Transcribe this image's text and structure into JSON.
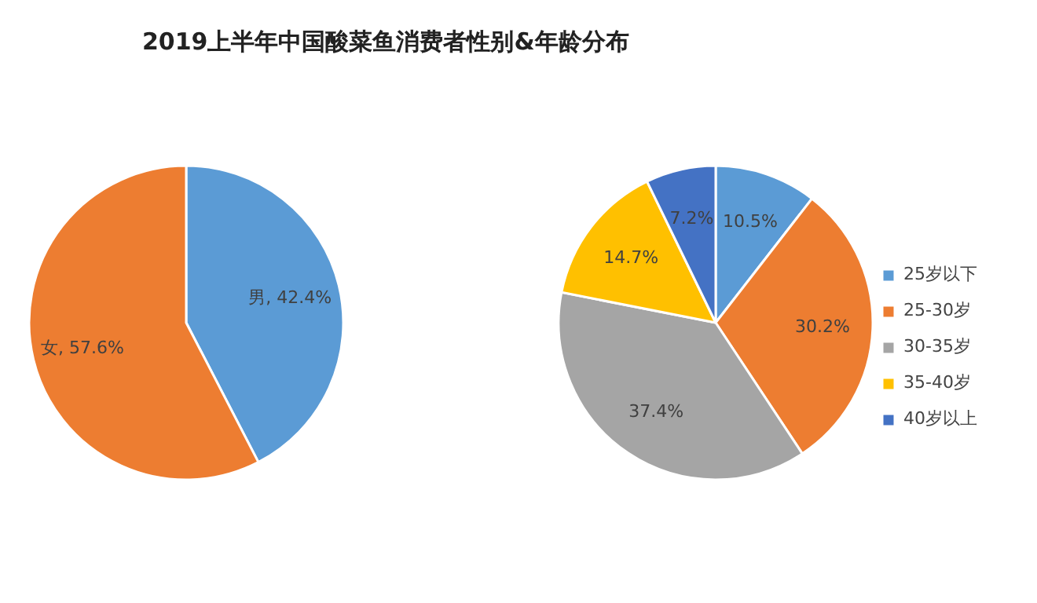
{
  "chart_data": [
    {
      "type": "pie",
      "title": "2019上半年中国酸菜鱼消费者性别&年龄分布",
      "categories": [
        "男",
        "女"
      ],
      "values": [
        42.4,
        57.6
      ],
      "colors": [
        "#5b9bd5",
        "#ed7d31"
      ],
      "value_labels": [
        "42.4%",
        "57.6%"
      ]
    },
    {
      "type": "pie",
      "categories": [
        "25岁以下",
        "25-30岁",
        "30-35岁",
        "35-40岁",
        "40岁以上"
      ],
      "values": [
        10.5,
        30.2,
        37.4,
        14.7,
        7.2
      ],
      "colors": [
        "#5b9bd5",
        "#ed7d31",
        "#a5a5a5",
        "#ffc000",
        "#4472c4"
      ],
      "value_labels": [
        "10.5%",
        "30.2%",
        "37.4%",
        "14.7%",
        "7.2%"
      ],
      "legend": "right"
    }
  ]
}
